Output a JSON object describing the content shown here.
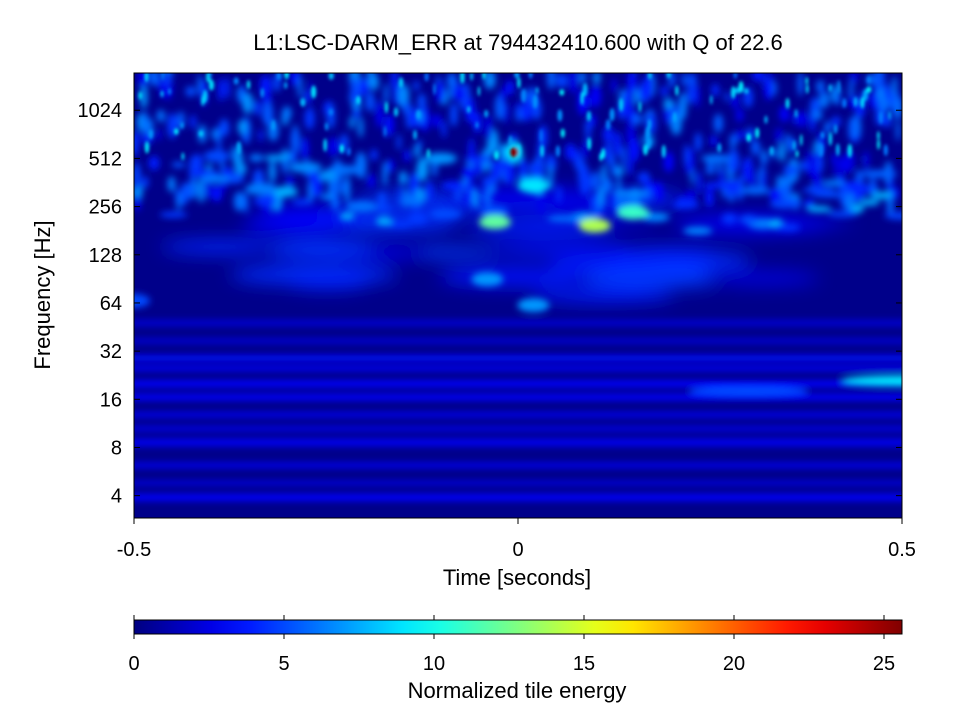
{
  "chart_data": [
    {
      "type": "heatmap",
      "title": "L1:LSC-DARM_ERR at 794432410.600 with Q of 22.6",
      "xlabel": "Time [seconds]",
      "ylabel": "Frequency [Hz]",
      "xlim": [
        -0.5,
        0.5
      ],
      "ylim": [
        2.9,
        1750
      ],
      "y_scale": "log2",
      "x_ticks": [
        -0.5,
        0,
        0.5
      ],
      "x_tick_labels": [
        "-0.5",
        "0",
        "0.5"
      ],
      "y_ticks": [
        4,
        8,
        16,
        32,
        64,
        128,
        256,
        512,
        1024
      ],
      "y_tick_labels": [
        "4",
        "8",
        "16",
        "32",
        "64",
        "128",
        "256",
        "512",
        "1024"
      ],
      "colormap": "jet",
      "color_range": [
        0,
        25.6
      ],
      "grid": false,
      "features": [
        {
          "t": -0.005,
          "f": 560,
          "energy": 25.6
        },
        {
          "t": 0.1,
          "f": 195,
          "energy": 14
        },
        {
          "t": -0.03,
          "f": 205,
          "energy": 12
        },
        {
          "t": 0.15,
          "f": 235,
          "energy": 11
        },
        {
          "t": 0.02,
          "f": 345,
          "energy": 9
        },
        {
          "t": 0.02,
          "f": 62,
          "energy": 7
        },
        {
          "t": -0.04,
          "f": 90,
          "energy": 7
        },
        {
          "t": 0.5,
          "f": 21,
          "energy": 9
        },
        {
          "t": 0.3,
          "f": 18,
          "energy": 5
        },
        {
          "t": -0.5,
          "f": 66,
          "energy": 5
        }
      ]
    },
    {
      "type": "colorbar",
      "label": "Normalized tile energy",
      "range": [
        0,
        25.6
      ],
      "ticks": [
        0,
        5,
        10,
        15,
        20,
        25
      ],
      "tick_labels": [
        "0",
        "5",
        "10",
        "15",
        "20",
        "25"
      ],
      "colormap": "jet"
    }
  ]
}
